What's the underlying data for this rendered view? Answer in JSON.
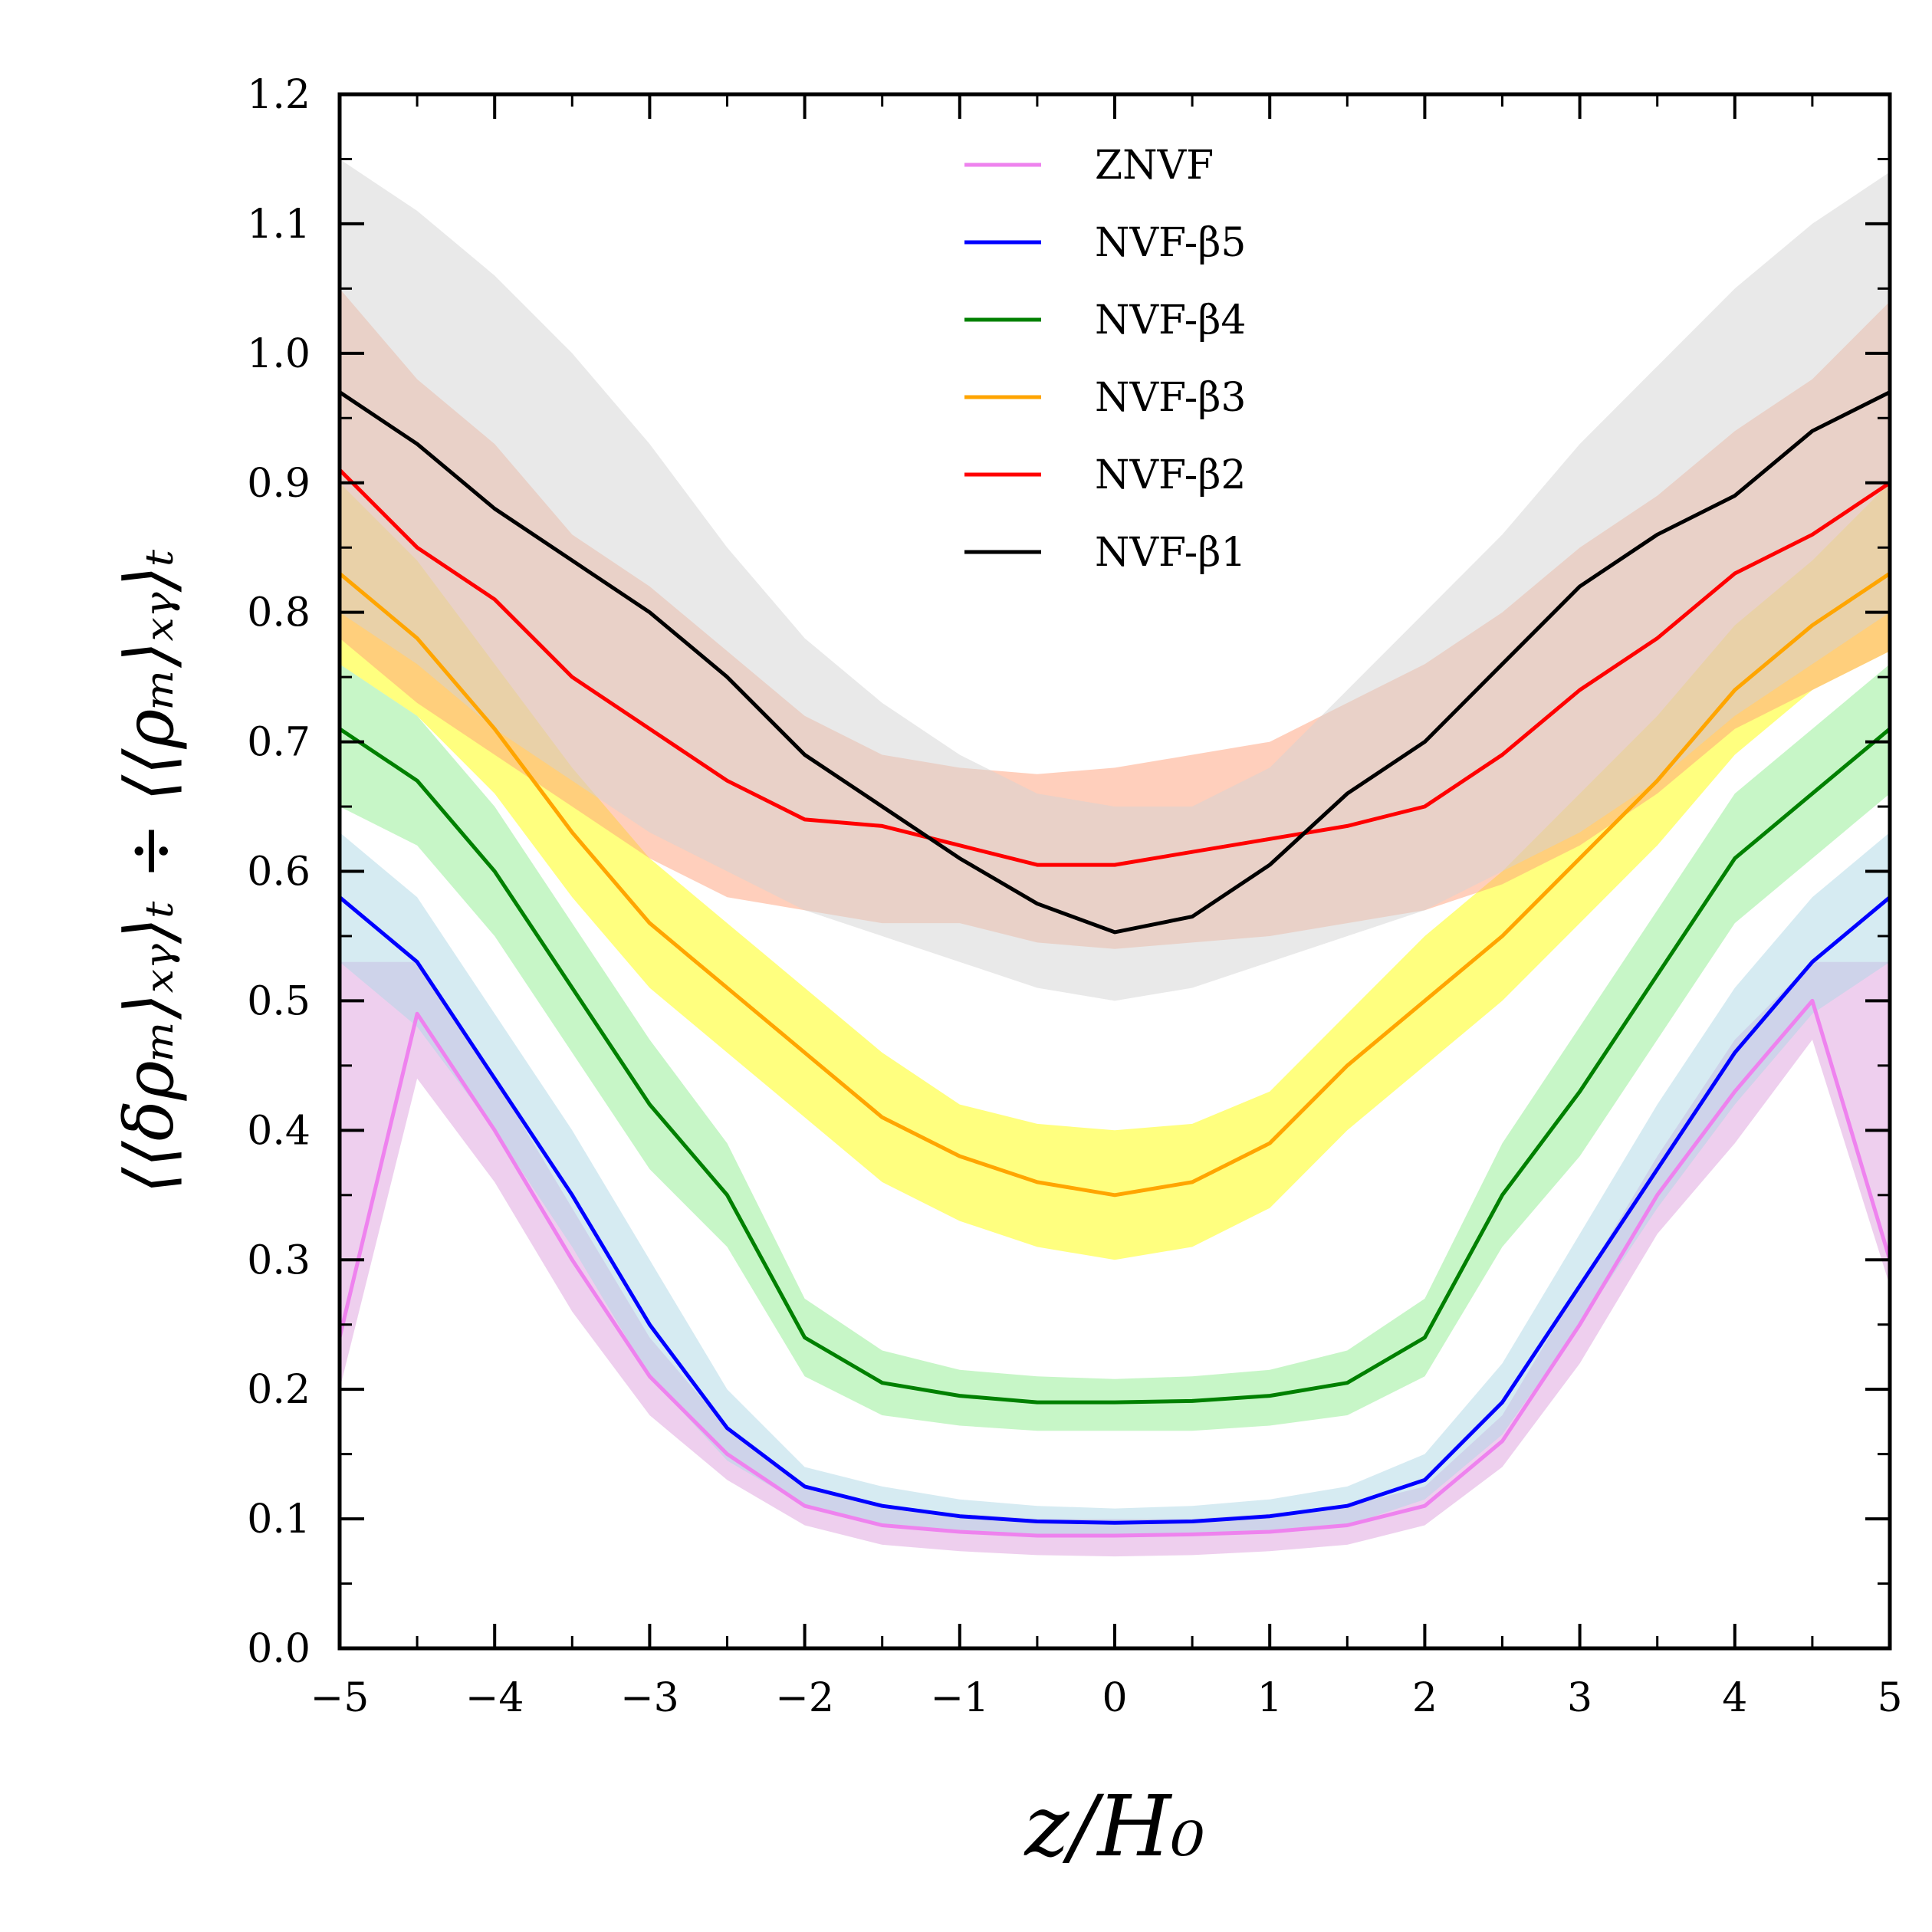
{
  "chart_data": {
    "type": "line",
    "xlabel": "z/H₀",
    "ylabel": "⟨⟨δρₘ⟩ₓᵧ⟩ₜ ÷ ⟨⟨ρₘ⟩ₓᵧ⟩ₜ",
    "xlim": [
      -5,
      5
    ],
    "ylim": [
      0,
      1.2
    ],
    "xticks": [
      -5,
      -4,
      -3,
      -2,
      -1,
      0,
      1,
      2,
      3,
      4,
      5
    ],
    "xtick_labels": [
      "−5",
      "−4",
      "−3",
      "−2",
      "−1",
      "0",
      "1",
      "2",
      "3",
      "4",
      "5"
    ],
    "yticks": [
      0,
      0.1,
      0.2,
      0.3,
      0.4,
      0.5,
      0.6,
      0.7,
      0.8,
      0.9,
      1.0,
      1.1,
      1.2
    ],
    "ytick_labels": [
      "0.0",
      "0.1",
      "0.2",
      "0.3",
      "0.4",
      "0.5",
      "0.6",
      "0.7",
      "0.8",
      "0.9",
      "1.0",
      "1.1",
      "1.2"
    ],
    "legend_position": "top-center",
    "x": [
      -5,
      -4.5,
      -4,
      -3.5,
      -3,
      -2.5,
      -2,
      -1.5,
      -1,
      -0.5,
      0,
      0.5,
      1,
      1.5,
      2,
      2.5,
      3,
      3.5,
      4,
      4.5,
      5
    ],
    "series": [
      {
        "name": "ZNVF",
        "color": "#ee82ee",
        "band_color": "#dda0dd",
        "values": [
          0.24,
          0.49,
          0.4,
          0.3,
          0.21,
          0.15,
          0.11,
          0.095,
          0.09,
          0.087,
          0.087,
          0.088,
          0.09,
          0.095,
          0.11,
          0.16,
          0.25,
          0.35,
          0.43,
          0.5,
          0.3
        ],
        "upper": [
          0.53,
          0.53,
          0.44,
          0.34,
          0.24,
          0.17,
          0.125,
          0.11,
          0.104,
          0.1,
          0.1,
          0.1,
          0.104,
          0.11,
          0.125,
          0.18,
          0.28,
          0.38,
          0.47,
          0.53,
          0.53
        ],
        "lower": [
          0.2,
          0.44,
          0.36,
          0.26,
          0.18,
          0.13,
          0.095,
          0.08,
          0.075,
          0.072,
          0.071,
          0.072,
          0.075,
          0.08,
          0.095,
          0.14,
          0.22,
          0.32,
          0.39,
          0.47,
          0.28
        ]
      },
      {
        "name": "NVF-β5",
        "color": "#0000ff",
        "band_color": "#add8e6",
        "values": [
          0.58,
          0.53,
          0.44,
          0.35,
          0.25,
          0.17,
          0.125,
          0.11,
          0.102,
          0.098,
          0.097,
          0.098,
          0.102,
          0.11,
          0.13,
          0.19,
          0.28,
          0.37,
          0.46,
          0.53,
          0.58
        ],
        "upper": [
          0.63,
          0.58,
          0.49,
          0.4,
          0.3,
          0.2,
          0.14,
          0.125,
          0.115,
          0.11,
          0.108,
          0.11,
          0.115,
          0.125,
          0.15,
          0.22,
          0.32,
          0.42,
          0.51,
          0.58,
          0.63
        ],
        "lower": [
          0.53,
          0.48,
          0.4,
          0.31,
          0.21,
          0.145,
          0.11,
          0.095,
          0.09,
          0.087,
          0.086,
          0.087,
          0.09,
          0.095,
          0.115,
          0.165,
          0.25,
          0.34,
          0.42,
          0.49,
          0.53
        ]
      },
      {
        "name": "NVF-β4",
        "color": "#008000",
        "band_color": "#90ee90",
        "values": [
          0.71,
          0.67,
          0.6,
          0.51,
          0.42,
          0.35,
          0.24,
          0.205,
          0.195,
          0.19,
          0.19,
          0.191,
          0.195,
          0.205,
          0.24,
          0.35,
          0.43,
          0.52,
          0.61,
          0.66,
          0.71
        ],
        "upper": [
          0.76,
          0.72,
          0.65,
          0.56,
          0.47,
          0.39,
          0.27,
          0.23,
          0.215,
          0.21,
          0.208,
          0.21,
          0.215,
          0.23,
          0.27,
          0.39,
          0.48,
          0.57,
          0.66,
          0.71,
          0.76
        ],
        "lower": [
          0.65,
          0.62,
          0.55,
          0.46,
          0.37,
          0.31,
          0.21,
          0.18,
          0.172,
          0.168,
          0.168,
          0.168,
          0.172,
          0.18,
          0.21,
          0.31,
          0.38,
          0.47,
          0.56,
          0.61,
          0.66
        ]
      },
      {
        "name": "NVF-β3",
        "color": "#ffa500",
        "band_color": "#ffff00",
        "values": [
          0.83,
          0.78,
          0.71,
          0.63,
          0.56,
          0.51,
          0.46,
          0.41,
          0.38,
          0.36,
          0.35,
          0.36,
          0.39,
          0.45,
          0.5,
          0.55,
          0.61,
          0.67,
          0.74,
          0.79,
          0.83
        ],
        "upper": [
          0.9,
          0.84,
          0.76,
          0.68,
          0.61,
          0.56,
          0.51,
          0.46,
          0.42,
          0.405,
          0.4,
          0.405,
          0.43,
          0.49,
          0.55,
          0.6,
          0.66,
          0.72,
          0.79,
          0.84,
          0.9
        ],
        "lower": [
          0.76,
          0.72,
          0.66,
          0.58,
          0.51,
          0.46,
          0.41,
          0.36,
          0.33,
          0.31,
          0.3,
          0.31,
          0.34,
          0.4,
          0.45,
          0.5,
          0.56,
          0.62,
          0.69,
          0.74,
          0.77
        ]
      },
      {
        "name": "NVF-β2",
        "color": "#ff0000",
        "band_color": "#ffa07a",
        "values": [
          0.91,
          0.85,
          0.81,
          0.75,
          0.71,
          0.67,
          0.64,
          0.635,
          0.62,
          0.605,
          0.605,
          0.615,
          0.625,
          0.635,
          0.65,
          0.69,
          0.74,
          0.78,
          0.83,
          0.86,
          0.9
        ],
        "upper": [
          1.05,
          0.98,
          0.93,
          0.86,
          0.82,
          0.77,
          0.72,
          0.69,
          0.68,
          0.675,
          0.68,
          0.69,
          0.7,
          0.73,
          0.76,
          0.8,
          0.85,
          0.89,
          0.94,
          0.98,
          1.04
        ],
        "lower": [
          0.78,
          0.73,
          0.69,
          0.65,
          0.61,
          0.58,
          0.57,
          0.56,
          0.56,
          0.545,
          0.54,
          0.545,
          0.55,
          0.56,
          0.57,
          0.59,
          0.62,
          0.66,
          0.71,
          0.74,
          0.77
        ]
      },
      {
        "name": "NVF-β1",
        "color": "#000000",
        "band_color": "#d3d3d3",
        "values": [
          0.97,
          0.93,
          0.88,
          0.84,
          0.8,
          0.75,
          0.69,
          0.65,
          0.61,
          0.575,
          0.553,
          0.565,
          0.605,
          0.66,
          0.7,
          0.76,
          0.82,
          0.86,
          0.89,
          0.94,
          0.97
        ],
        "upper": [
          1.15,
          1.11,
          1.06,
          1.0,
          0.93,
          0.85,
          0.78,
          0.73,
          0.69,
          0.66,
          0.65,
          0.65,
          0.68,
          0.74,
          0.8,
          0.86,
          0.93,
          0.99,
          1.05,
          1.1,
          1.14
        ],
        "lower": [
          0.8,
          0.76,
          0.71,
          0.67,
          0.63,
          0.6,
          0.57,
          0.55,
          0.53,
          0.51,
          0.5,
          0.51,
          0.53,
          0.55,
          0.57,
          0.6,
          0.63,
          0.67,
          0.72,
          0.76,
          0.8
        ]
      }
    ]
  }
}
